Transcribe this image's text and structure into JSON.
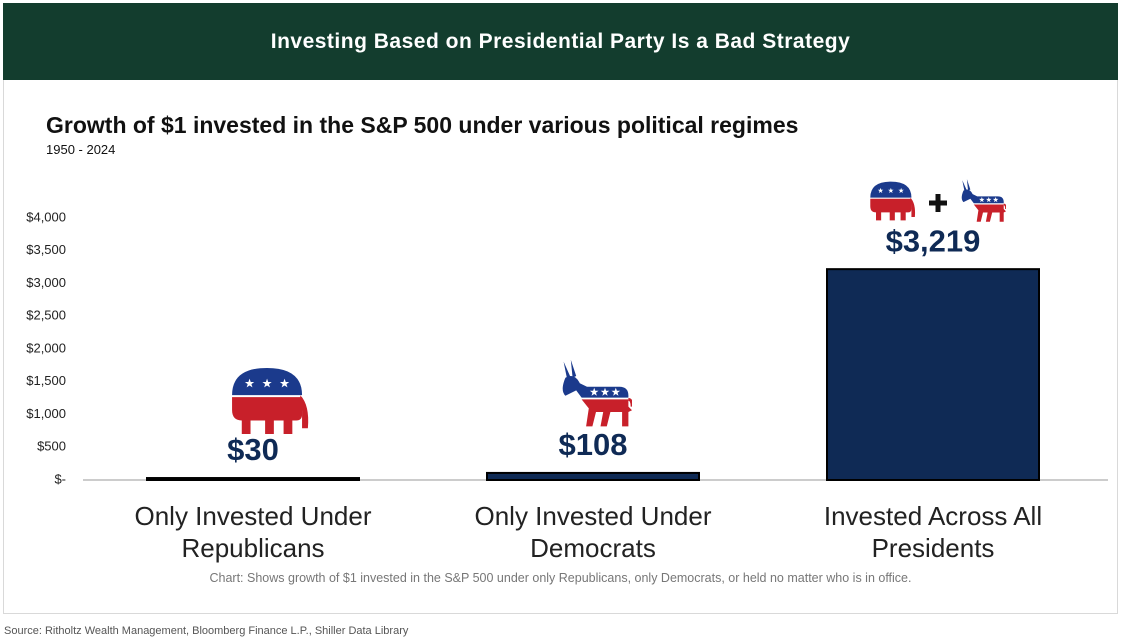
{
  "banner": "Investing Based on Presidential Party Is a Bad Strategy",
  "chart_data": {
    "type": "bar",
    "title": "Growth of $1 invested in the S&P 500 under various political regimes",
    "subtitle": "1950 - 2024",
    "categories": [
      "Only Invested Under Republicans",
      "Only Invested Under Democrats",
      "Invested Across All Presidents"
    ],
    "values": [
      30,
      108,
      3219
    ],
    "value_labels": [
      "$30",
      "$108",
      "$3,219"
    ],
    "color": "#0f2a55",
    "ylim": [
      0,
      4000
    ],
    "yticks": [
      {
        "value": 0,
        "label": "$-"
      },
      {
        "value": 500,
        "label": "$500"
      },
      {
        "value": 1000,
        "label": "$1,000"
      },
      {
        "value": 1500,
        "label": "$1,500"
      },
      {
        "value": 2000,
        "label": "$2,000"
      },
      {
        "value": 2500,
        "label": "$2,500"
      },
      {
        "value": 3000,
        "label": "$3,000"
      },
      {
        "value": 3500,
        "label": "$3,500"
      },
      {
        "value": 4000,
        "label": "$4,000"
      }
    ],
    "note": "Chart: Shows growth of $1 invested in the S&P 500 under only Republicans, only Democrats, or held no matter who is in office."
  },
  "source": "Source: Ritholtz Wealth Management, Bloomberg Finance L.P., Shiller Data Library"
}
